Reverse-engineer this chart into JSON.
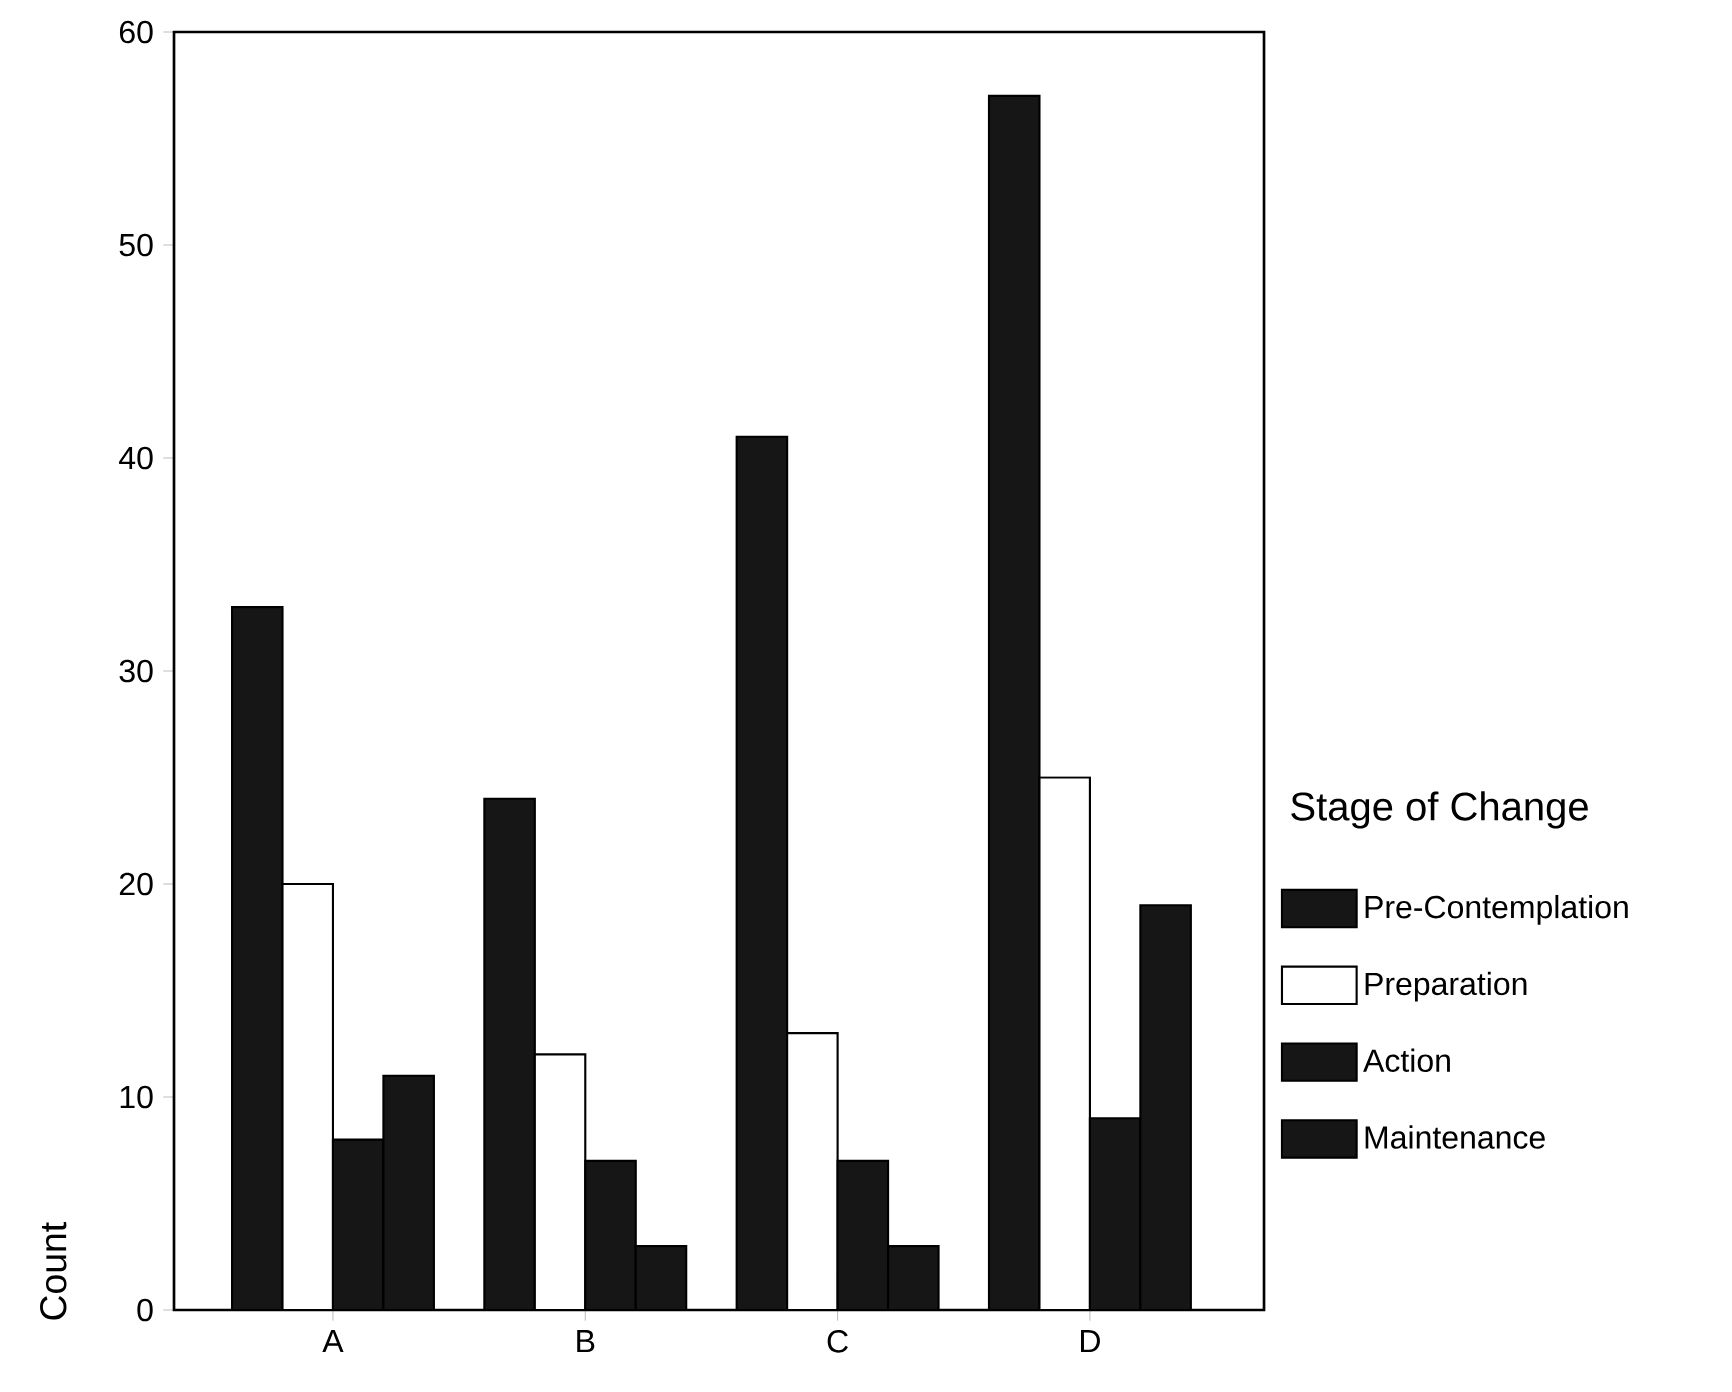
{
  "chart_data": {
    "type": "bar",
    "ylabel": "Count",
    "legend_title": "Stage of Change",
    "categories": [
      "A",
      "B",
      "C",
      "D"
    ],
    "series": [
      {
        "name": "Pre-Contemplation",
        "color": "#161616",
        "values": [
          33,
          24,
          41,
          57
        ]
      },
      {
        "name": "Preparation",
        "color": "#ffffff",
        "values": [
          20,
          12,
          13,
          25
        ]
      },
      {
        "name": "Action",
        "color": "#161616",
        "values": [
          8,
          7,
          7,
          9
        ]
      },
      {
        "name": "Maintenance",
        "color": "#161616",
        "values": [
          11,
          3,
          3,
          19
        ]
      }
    ],
    "ylim": [
      0,
      60
    ],
    "yticks": [
      0,
      10,
      20,
      30,
      40,
      50,
      60
    ],
    "legend": "right",
    "grid": false
  }
}
